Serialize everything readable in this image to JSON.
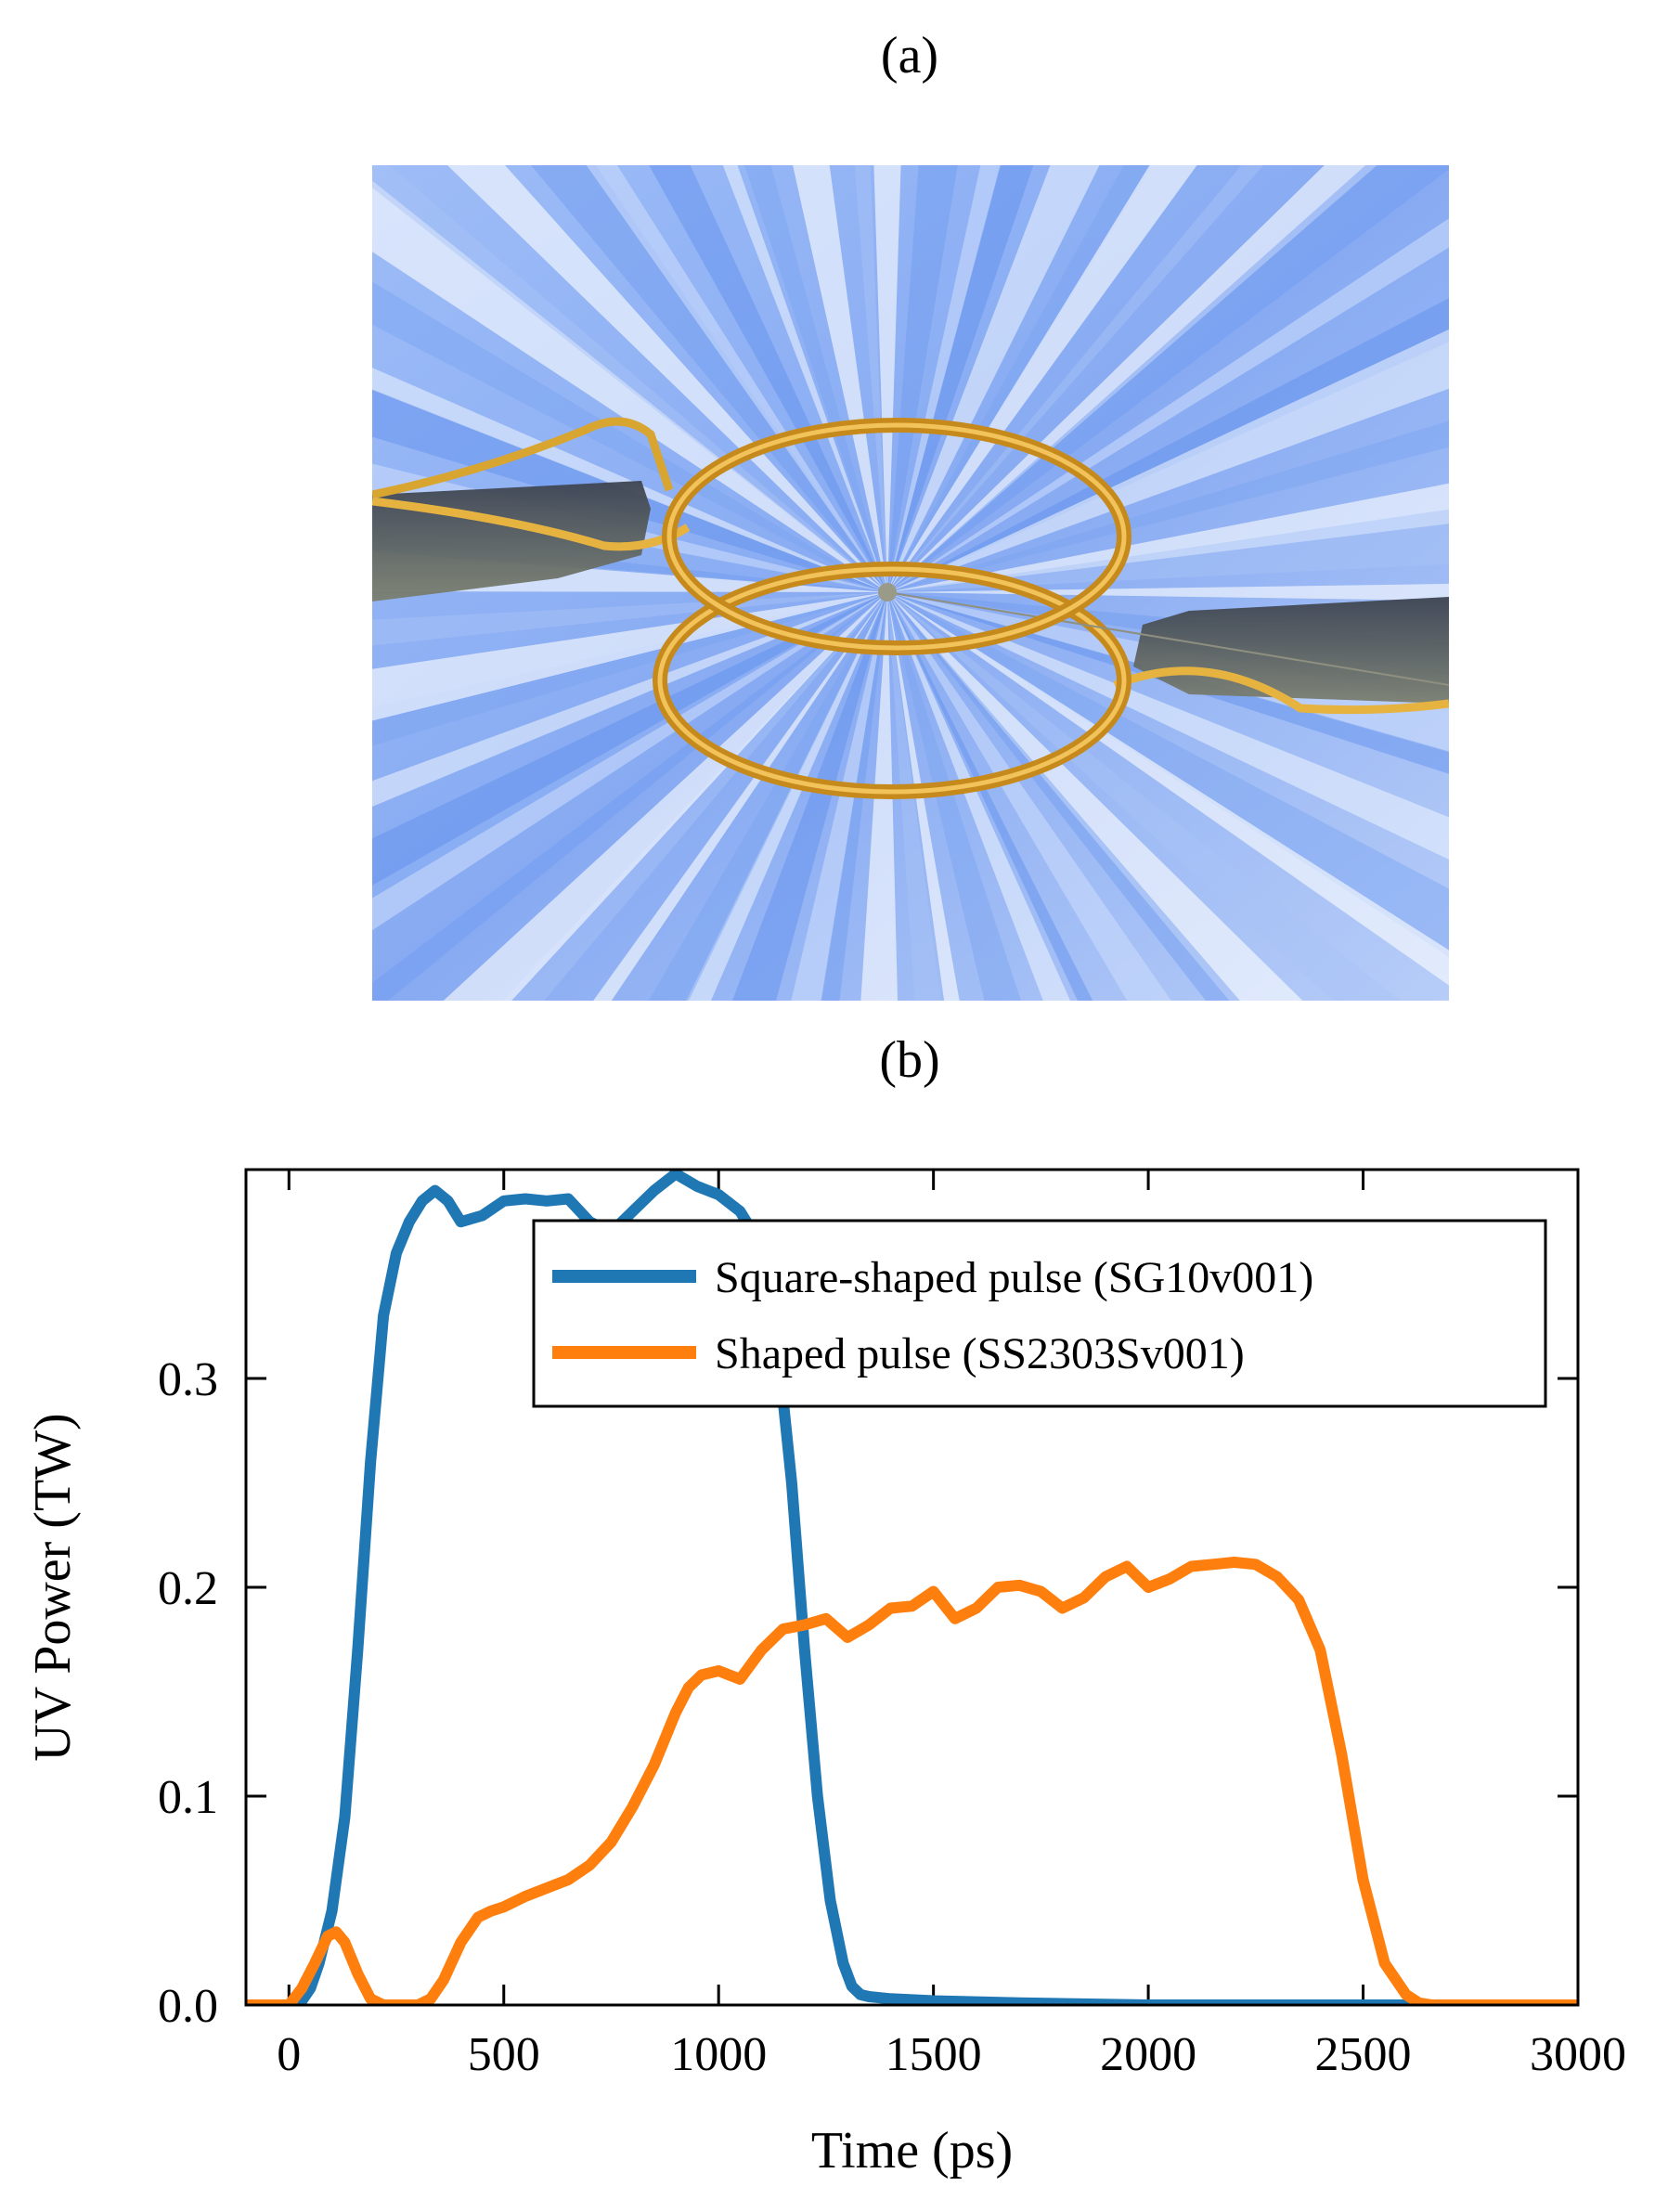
{
  "panels": {
    "a_label": "(a)",
    "b_label": "(b)"
  },
  "render": {
    "icon": "hohlraum-coil-target-render",
    "background_color": "#8fb2f5",
    "coil_color": "#e0a32a",
    "stalk_color": "#4a5260"
  },
  "chart_data": {
    "type": "line",
    "xlabel": "Time (ps)",
    "ylabel": "UV Power (TW)",
    "xlim": [
      -100,
      3000
    ],
    "ylim": [
      0,
      0.4
    ],
    "xticks": [
      0,
      500,
      1000,
      1500,
      2000,
      2500,
      3000
    ],
    "yticks": [
      0.0,
      0.1,
      0.2,
      0.3
    ],
    "ytick_labels": [
      "0.0",
      "0.1",
      "0.2",
      "0.3"
    ],
    "legend_position": "top-right",
    "series": [
      {
        "name": "Square-shaped pulse (SG10v001)",
        "color": "#1f77b4",
        "x": [
          -100,
          0,
          30,
          50,
          70,
          100,
          130,
          160,
          190,
          220,
          250,
          280,
          310,
          340,
          370,
          400,
          450,
          500,
          550,
          600,
          650,
          700,
          750,
          800,
          850,
          900,
          950,
          1000,
          1050,
          1080,
          1110,
          1140,
          1170,
          1200,
          1230,
          1260,
          1290,
          1310,
          1330,
          1350,
          1400,
          1500,
          1700,
          2000,
          2500,
          2800,
          3000
        ],
        "y": [
          0.0,
          0.0,
          0.002,
          0.008,
          0.02,
          0.045,
          0.09,
          0.17,
          0.26,
          0.33,
          0.36,
          0.375,
          0.385,
          0.39,
          0.385,
          0.375,
          0.378,
          0.385,
          0.386,
          0.385,
          0.386,
          0.375,
          0.37,
          0.38,
          0.39,
          0.398,
          0.392,
          0.388,
          0.38,
          0.37,
          0.35,
          0.31,
          0.25,
          0.17,
          0.1,
          0.05,
          0.02,
          0.009,
          0.005,
          0.004,
          0.003,
          0.002,
          0.001,
          0.0,
          0.0,
          0.0,
          0.0
        ]
      },
      {
        "name": "Shaped pulse (SS2303Sv001)",
        "color": "#ff7f0e",
        "x": [
          -100,
          0,
          30,
          60,
          90,
          110,
          130,
          160,
          190,
          220,
          260,
          300,
          330,
          360,
          400,
          440,
          470,
          500,
          550,
          600,
          650,
          700,
          750,
          800,
          850,
          900,
          930,
          960,
          1000,
          1050,
          1100,
          1150,
          1200,
          1250,
          1300,
          1350,
          1400,
          1450,
          1500,
          1550,
          1600,
          1650,
          1700,
          1750,
          1800,
          1850,
          1900,
          1950,
          2000,
          2050,
          2100,
          2150,
          2200,
          2250,
          2300,
          2350,
          2400,
          2450,
          2500,
          2550,
          2600,
          2630,
          2660,
          2690,
          2720,
          2750,
          2780,
          2800,
          2850,
          2900,
          3000
        ],
        "y": [
          0.0,
          0.0,
          0.008,
          0.02,
          0.033,
          0.035,
          0.03,
          0.015,
          0.003,
          0.0,
          0.0,
          0.0,
          0.003,
          0.012,
          0.03,
          0.042,
          0.045,
          0.047,
          0.052,
          0.056,
          0.06,
          0.067,
          0.078,
          0.095,
          0.115,
          0.14,
          0.152,
          0.158,
          0.16,
          0.156,
          0.17,
          0.18,
          0.182,
          0.185,
          0.176,
          0.182,
          0.19,
          0.191,
          0.198,
          0.185,
          0.19,
          0.2,
          0.201,
          0.198,
          0.19,
          0.195,
          0.205,
          0.21,
          0.2,
          0.204,
          0.21,
          0.211,
          0.212,
          0.211,
          0.205,
          0.194,
          0.17,
          0.12,
          0.06,
          0.02,
          0.005,
          0.001,
          0.0,
          0.0,
          0.0,
          0.0,
          0.0,
          0.0,
          0.0,
          0.0,
          0.0
        ]
      }
    ]
  }
}
